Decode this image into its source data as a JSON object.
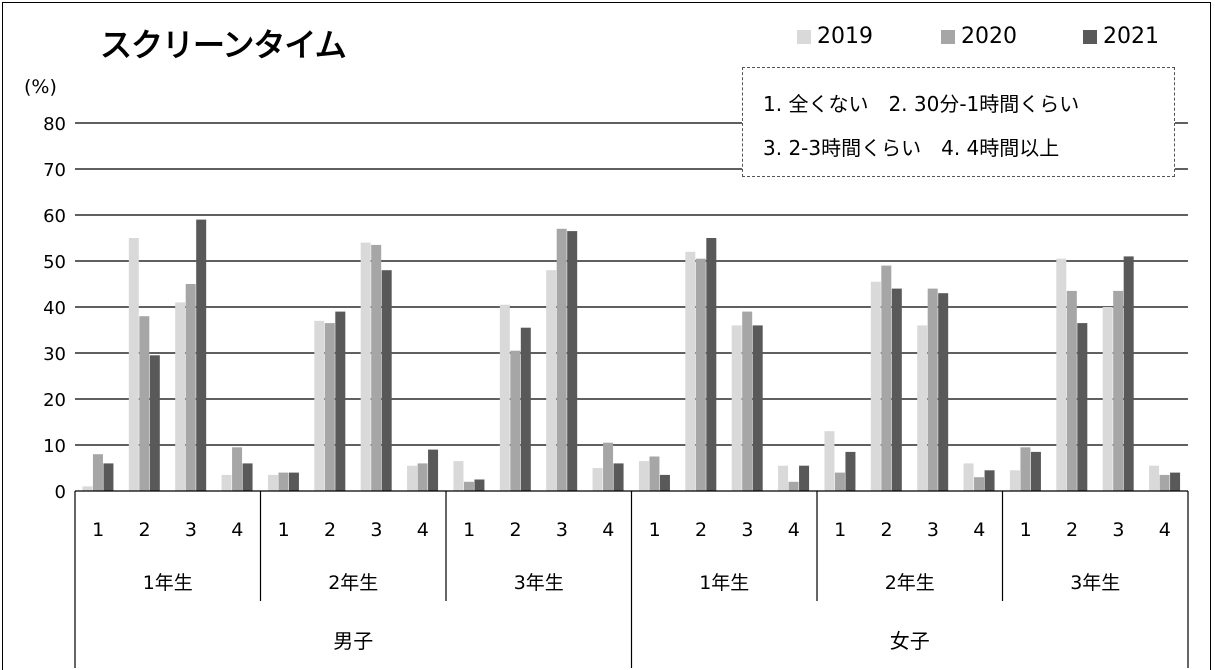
{
  "chart_data": {
    "type": "bar",
    "title": "スクリーンタイム",
    "unit_label": "(%)",
    "ylim": [
      0,
      80
    ],
    "yticks": [
      "0",
      "10",
      "20",
      "30",
      "40",
      "50",
      "60",
      "70",
      "80"
    ],
    "legend_position": "top-right",
    "notes": [
      "1. 全くない　2. 30分-1時間くらい",
      "3. 2-3時間くらい　4. 4時間以上"
    ],
    "category_levels": {
      "level1": [
        "1",
        "2",
        "3",
        "4",
        "1",
        "2",
        "3",
        "4",
        "1",
        "2",
        "3",
        "4",
        "1",
        "2",
        "3",
        "4",
        "1",
        "2",
        "3",
        "4",
        "1",
        "2",
        "3",
        "4"
      ],
      "level2": [
        "1年生",
        "2年生",
        "3年生",
        "1年生",
        "2年生",
        "3年生"
      ],
      "level3": [
        "男子",
        "女子"
      ]
    },
    "series": [
      {
        "name": "2019",
        "color": "#d9d9d9",
        "values": [
          1,
          55,
          41,
          3.5,
          3.5,
          37,
          54,
          5.5,
          6.5,
          40.5,
          48,
          5,
          6.5,
          52,
          36,
          5.5,
          13,
          45.5,
          36,
          6,
          4.5,
          50.5,
          40,
          5.5
        ]
      },
      {
        "name": "2020",
        "color": "#a6a6a6",
        "values": [
          8,
          38,
          45,
          9.5,
          4,
          36.5,
          53.5,
          6,
          2,
          30.5,
          57,
          10.5,
          7.5,
          50.5,
          39,
          2,
          4,
          49,
          44,
          3,
          9.5,
          43.5,
          43.5,
          3.5
        ]
      },
      {
        "name": "2021",
        "color": "#595959",
        "values": [
          6,
          29.5,
          59,
          6,
          4,
          39,
          48,
          9,
          2.5,
          35.5,
          56.5,
          6,
          3.5,
          55,
          36,
          5.5,
          8.5,
          44,
          43,
          4.5,
          8.5,
          36.5,
          51,
          4
        ]
      }
    ]
  }
}
